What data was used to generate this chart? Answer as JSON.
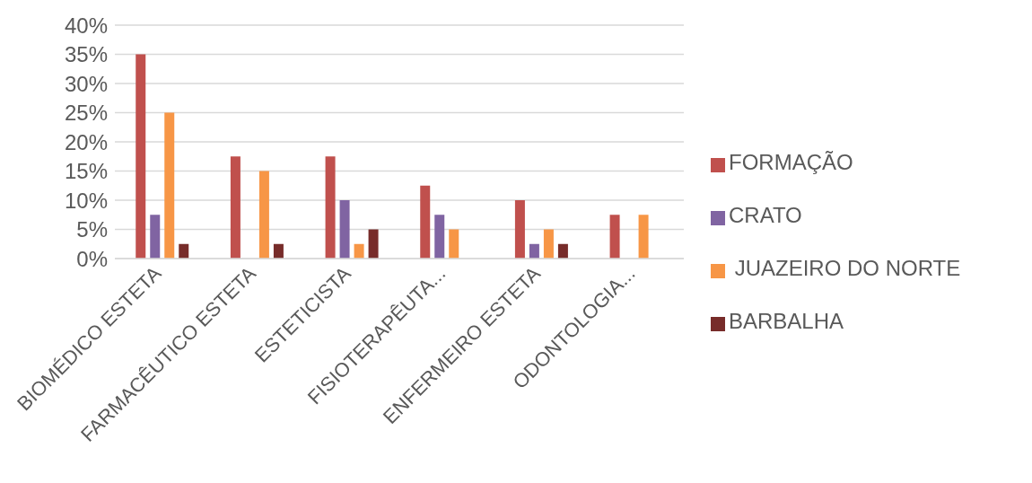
{
  "chart_data": {
    "type": "bar",
    "categories": [
      "BIOMÉDICO ESTETA",
      "FARMACÊUTICO ESTETA",
      "ESTETICISTA",
      "FISIOTERAPÊUTA...",
      "ENFERMEIRO ESTETA",
      "ODONTOLOGIA..."
    ],
    "series": [
      {
        "name": "FORMAÇÃO",
        "color": "#c0504d",
        "values": [
          35,
          17.5,
          17.5,
          12.5,
          10,
          7.5
        ]
      },
      {
        "name": "CRATO",
        "color": "#8064a2",
        "values": [
          7.5,
          0,
          10,
          7.5,
          2.5,
          0
        ]
      },
      {
        "name": " JUAZEIRO DO NORTE",
        "color": "#f79646",
        "values": [
          25,
          15,
          2.5,
          5,
          5,
          7.5
        ]
      },
      {
        "name": "BARBALHA",
        "color": "#772c2a",
        "values": [
          2.5,
          2.5,
          5,
          0,
          2.5,
          0
        ]
      }
    ],
    "ylim": [
      0,
      40
    ],
    "yticks": [
      {
        "value": 0,
        "label": "0%"
      },
      {
        "value": 5,
        "label": "5%"
      },
      {
        "value": 10,
        "label": "10%"
      },
      {
        "value": 15,
        "label": "15%"
      },
      {
        "value": 20,
        "label": "20%"
      },
      {
        "value": 25,
        "label": "25%"
      },
      {
        "value": 30,
        "label": "30%"
      },
      {
        "value": 35,
        "label": "35%"
      },
      {
        "value": 40,
        "label": "40%"
      }
    ],
    "grid": "y",
    "legend": "right"
  }
}
